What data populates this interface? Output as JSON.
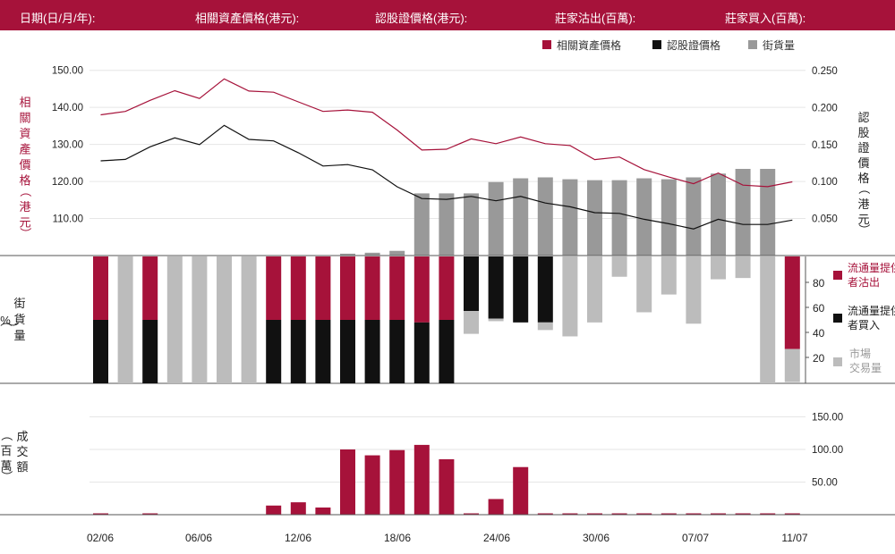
{
  "header": {
    "date_label": "日期(日/月/年):",
    "underlying_label": "相關資產價格(港元):",
    "warrant_label": "認股證價格(港元):",
    "issuer_sell_label": "莊家沽出(百萬):",
    "issuer_buy_label": "莊家買入(百萬):"
  },
  "colors": {
    "brand": "#a6123a",
    "warrant": "#111111",
    "outstanding": "#999999",
    "market": "#bcbcbc",
    "grid": "#e6e6e6"
  },
  "chart_data": {
    "type": "line",
    "legend": {
      "underlying": "相關資產價格",
      "warrant": "認股證價格",
      "outstanding": "街貨量"
    },
    "x_tick_labels": [
      "02/06",
      "06/06",
      "12/06",
      "18/06",
      "24/06",
      "30/06",
      "07/07",
      "11/07"
    ],
    "price_panel": {
      "left_axis": {
        "label": "相關資產價格（港元）",
        "ticks": [
          "150.00",
          "140.00",
          "130.00",
          "120.00",
          "110.00"
        ],
        "range": [
          100,
          155
        ]
      },
      "right_axis": {
        "label": "認股證價格（港元）",
        "ticks": [
          "0.250",
          "0.200",
          "0.150",
          "0.100",
          "0.050"
        ],
        "range": [
          0,
          0.25
        ]
      },
      "underlying_price": [
        138.0,
        138.9,
        141.9,
        144.5,
        142.4,
        147.7,
        144.4,
        144.1,
        141.5,
        138.9,
        139.3,
        138.7,
        133.9,
        128.5,
        128.7,
        131.5,
        130.2,
        132.0,
        130.2,
        129.7,
        125.9,
        126.6,
        123.2,
        121.2,
        119.4,
        122.3,
        119.0,
        118.6,
        119.9
      ],
      "warrant_price": [
        0.128,
        0.13,
        0.147,
        0.159,
        0.15,
        0.176,
        0.157,
        0.155,
        0.139,
        0.121,
        0.123,
        0.116,
        0.093,
        0.077,
        0.076,
        0.08,
        0.074,
        0.08,
        0.071,
        0.066,
        0.058,
        0.057,
        0.049,
        0.043,
        0.036,
        0.049,
        0.042,
        0.042,
        0.048
      ]
    },
    "outstanding_panel": {
      "axis_label": "街貨量（%）",
      "ticks": [
        "80",
        "60",
        "40",
        "20"
      ],
      "legend": {
        "issuer_sell": "流通量提供者沽出",
        "issuer_buy": "流通量提供者買入",
        "market_volume": "市場交易量"
      },
      "outstanding_pct": [
        0,
        0,
        0,
        0,
        0,
        0,
        0,
        0,
        0,
        0,
        1,
        1.5,
        2.5,
        33,
        33,
        33,
        39,
        41,
        41.5,
        40.5,
        40,
        40,
        41,
        40.5,
        41.5,
        43.5,
        46,
        46,
        0
      ],
      "issuer_sell_pct": [
        50,
        0,
        50,
        0,
        0,
        0,
        0,
        50,
        50,
        50,
        50,
        50,
        50,
        52,
        50,
        0,
        0,
        0,
        0,
        0,
        0,
        0,
        0,
        0,
        0,
        0,
        0,
        0,
        73
      ],
      "issuer_buy_pct": [
        50,
        0,
        50,
        0,
        0,
        0,
        0,
        50,
        50,
        50,
        50,
        50,
        50,
        48,
        50,
        43,
        49,
        52,
        52,
        0,
        0,
        0,
        0,
        0,
        0,
        0,
        0,
        0,
        0
      ],
      "market_volume_pct": [
        0,
        100,
        0,
        100,
        100,
        100,
        100,
        0,
        0,
        0,
        0,
        0,
        0,
        0,
        0,
        18,
        2,
        0,
        6,
        63,
        52,
        16,
        44,
        30,
        53,
        18,
        17,
        100,
        26
      ]
    },
    "turnover_panel": {
      "axis_label": "成交額（百萬）",
      "ticks": [
        "150.00",
        "100.00",
        "50.00"
      ],
      "range": [
        0,
        170
      ],
      "turnover": [
        2,
        0,
        2,
        0,
        0,
        0,
        0,
        14,
        19,
        11,
        100,
        91,
        99,
        107,
        85,
        1,
        24,
        73,
        1,
        1,
        1,
        1,
        1,
        1,
        1,
        1,
        1,
        1,
        1
      ]
    }
  }
}
